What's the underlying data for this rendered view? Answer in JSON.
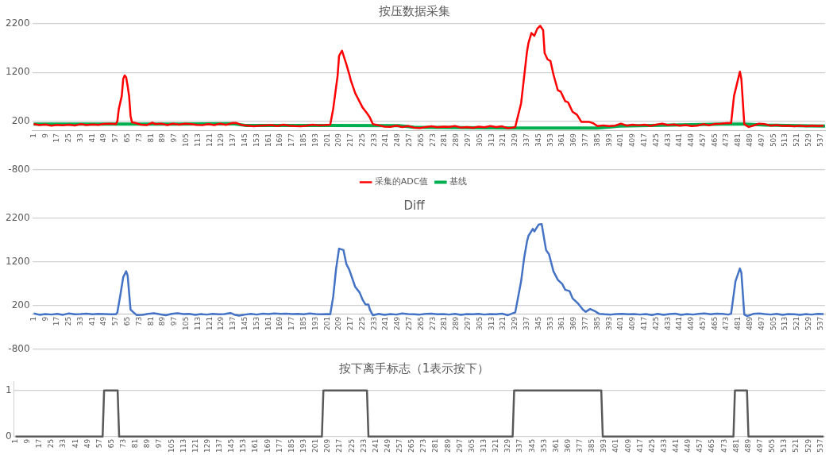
{
  "chart_data": [
    {
      "type": "line",
      "title": "按压数据采集",
      "legend": "bottom",
      "grid": "y",
      "marker": "none",
      "xlim": [
        0,
        540
      ],
      "xticks": [
        1,
        9,
        17,
        25,
        33,
        41,
        49,
        57,
        65,
        73,
        81,
        89,
        97,
        105,
        113,
        121,
        129,
        137,
        145,
        153,
        161,
        169,
        177,
        185,
        193,
        201,
        209,
        217,
        225,
        233,
        241,
        249,
        257,
        265,
        273,
        281,
        289,
        297,
        305,
        313,
        321,
        329,
        337,
        345,
        353,
        361,
        369,
        377,
        385,
        393,
        401,
        409,
        417,
        425,
        433,
        441,
        449,
        457,
        465,
        473,
        481,
        489,
        497,
        505,
        513,
        521,
        529,
        537
      ],
      "ylim": [
        -800,
        2200
      ],
      "yticks": [
        -800,
        200,
        1200,
        2200
      ],
      "series": [
        {
          "name": "采集的ADC值",
          "color": "#ff0000",
          "x": [
            1,
            5,
            9,
            13,
            17,
            21,
            25,
            29,
            33,
            37,
            41,
            45,
            49,
            53,
            57,
            58,
            59,
            61,
            62,
            63,
            64,
            65,
            66,
            67,
            68,
            70,
            74,
            78,
            82,
            84,
            88,
            92,
            96,
            100,
            104,
            108,
            112,
            116,
            120,
            124,
            128,
            132,
            136,
            139,
            143,
            147,
            151,
            155,
            159,
            163,
            167,
            171,
            175,
            179,
            183,
            187,
            191,
            195,
            199,
            203,
            205,
            208,
            209,
            211,
            214,
            216,
            217,
            220,
            223,
            225,
            228,
            230,
            232,
            236,
            240,
            244,
            248,
            252,
            256,
            260,
            264,
            268,
            272,
            276,
            280,
            284,
            288,
            292,
            296,
            300,
            304,
            308,
            312,
            316,
            320,
            324,
            327,
            329,
            333,
            337,
            338,
            340,
            342,
            344,
            346,
            348,
            349,
            351,
            353,
            355,
            358,
            360,
            363,
            365,
            368,
            371,
            374,
            379,
            382,
            385,
            389,
            393,
            397,
            401,
            405,
            409,
            413,
            417,
            421,
            425,
            429,
            433,
            437,
            441,
            445,
            449,
            453,
            457,
            461,
            465,
            469,
            473,
            476,
            478,
            482,
            483,
            485,
            488,
            491,
            495,
            499,
            503,
            507,
            511,
            515,
            519,
            523,
            527,
            531,
            535,
            539
          ],
          "values": [
            140,
            120,
            135,
            110,
            125,
            118,
            130,
            112,
            140,
            120,
            135,
            125,
            145,
            150,
            140,
            200,
            453,
            718,
            1070,
            1141,
            1100,
            924,
            718,
            306,
            176,
            165,
            130,
            120,
            170,
            140,
            150,
            120,
            150,
            130,
            150,
            140,
            125,
            120,
            140,
            120,
            150,
            125,
            160,
            165,
            120,
            110,
            95,
            110,
            115,
            120,
            100,
            130,
            110,
            100,
            95,
            110,
            130,
            115,
            120,
            130,
            453,
            1130,
            1541,
            1647,
            1365,
            1160,
            1040,
            776,
            600,
            482,
            365,
            276,
            140,
            115,
            90,
            85,
            110,
            80,
            100,
            70,
            60,
            80,
            95,
            75,
            90,
            85,
            100,
            70,
            80,
            65,
            90,
            75,
            100,
            80,
            95,
            55,
            70,
            82,
            570,
            1630,
            1806,
            2012,
            1953,
            2100,
            2159,
            2070,
            1600,
            1470,
            1435,
            1160,
            835,
            806,
            612,
            588,
            394,
            335,
            188,
            188,
            160,
            100,
            115,
            100,
            110,
            150,
            110,
            130,
            115,
            130,
            105,
            130,
            150,
            120,
            135,
            110,
            120,
            100,
            110,
            140,
            115,
            145,
            150,
            160,
            160,
            718,
            1218,
            1070,
            140,
            82,
            110,
            150,
            140,
            110,
            120,
            105,
            110,
            95,
            110,
            95,
            110,
            100,
            110
          ]
        },
        {
          "name": "基线",
          "color": "#00b050",
          "x": [
            1,
            60,
            72,
            100,
            137,
            145,
            200,
            250,
            260,
            329,
            385,
            400,
            470,
            485,
            500,
            540
          ],
          "values": [
            140,
            140,
            140,
            140,
            150,
            115,
            115,
            110,
            75,
            60,
            60,
            100,
            140,
            140,
            120,
            100
          ]
        }
      ]
    },
    {
      "type": "line",
      "title": "Diff",
      "legend": false,
      "grid": "y",
      "marker": "none",
      "xlim": [
        0,
        540
      ],
      "xticks": [
        1,
        9,
        17,
        25,
        33,
        41,
        49,
        57,
        65,
        73,
        81,
        89,
        97,
        105,
        113,
        121,
        129,
        137,
        145,
        153,
        161,
        169,
        177,
        185,
        193,
        201,
        209,
        217,
        225,
        233,
        241,
        249,
        257,
        265,
        273,
        281,
        289,
        297,
        305,
        313,
        321,
        329,
        337,
        345,
        353,
        361,
        369,
        377,
        385,
        393,
        401,
        409,
        417,
        425,
        433,
        441,
        449,
        457,
        465,
        473,
        481,
        489,
        497,
        505,
        513,
        521,
        529,
        537
      ],
      "ylim": [
        -800,
        2200
      ],
      "yticks": [
        -800,
        200,
        1200,
        2200
      ],
      "series": [
        {
          "color": "#4472c4",
          "x": [
            1,
            5,
            9,
            13,
            17,
            21,
            25,
            29,
            33,
            37,
            41,
            45,
            49,
            53,
            57,
            58,
            60,
            62,
            64,
            65,
            67,
            69,
            71,
            75,
            79,
            83,
            87,
            91,
            95,
            99,
            103,
            107,
            111,
            115,
            119,
            123,
            127,
            131,
            135,
            138,
            141,
            145,
            149,
            153,
            157,
            161,
            165,
            169,
            173,
            177,
            181,
            185,
            189,
            193,
            197,
            201,
            203,
            205,
            207,
            209,
            212,
            214,
            216,
            220,
            223,
            225,
            227,
            229,
            230,
            232,
            236,
            240,
            244,
            248,
            252,
            256,
            260,
            264,
            268,
            272,
            276,
            280,
            284,
            288,
            292,
            296,
            300,
            304,
            308,
            312,
            316,
            320,
            324,
            329,
            333,
            335,
            337,
            338,
            341,
            342,
            345,
            347,
            349,
            350,
            352,
            355,
            358,
            361,
            363,
            366,
            368,
            372,
            375,
            377,
            380,
            383,
            386,
            390,
            394,
            398,
            402,
            406,
            410,
            414,
            418,
            422,
            426,
            430,
            434,
            438,
            442,
            446,
            450,
            454,
            458,
            462,
            466,
            470,
            474,
            476,
            479,
            482,
            483,
            485,
            487,
            491,
            495,
            499,
            503,
            507,
            511,
            515,
            519,
            523,
            527,
            531,
            535,
            539
          ],
          "values": [
            20,
            -10,
            5,
            -5,
            10,
            -10,
            20,
            0,
            5,
            15,
            0,
            10,
            5,
            0,
            0,
            45,
            435,
            850,
            987,
            890,
            110,
            45,
            -15,
            -10,
            10,
            25,
            0,
            -20,
            10,
            25,
            5,
            10,
            -10,
            5,
            -5,
            10,
            0,
            5,
            30,
            -10,
            -30,
            -5,
            10,
            -5,
            15,
            5,
            20,
            10,
            15,
            5,
            10,
            0,
            20,
            5,
            0,
            5,
            0,
            400,
            1050,
            1506,
            1474,
            1150,
            1020,
            630,
            500,
            338,
            227,
            227,
            110,
            -20,
            10,
            -10,
            5,
            -5,
            20,
            5,
            0,
            -5,
            10,
            15,
            0,
            5,
            -5,
            10,
            -10,
            5,
            0,
            10,
            -5,
            5,
            0,
            15,
            -20,
            45,
            760,
            1280,
            1670,
            1800,
            1960,
            1900,
            2060,
            2070,
            1670,
            1474,
            1376,
            987,
            792,
            695,
            565,
            532,
            370,
            240,
            110,
            58,
            123,
            78,
            13,
            0,
            -5,
            5,
            10,
            0,
            5,
            -5,
            5,
            -15,
            10,
            -10,
            5,
            15,
            -10,
            5,
            -5,
            10,
            20,
            0,
            15,
            10,
            -5,
            13,
            760,
            1052,
            955,
            -6,
            -40,
            10,
            20,
            5,
            -5,
            10,
            -10,
            5,
            0,
            -10,
            5,
            -5,
            10,
            5
          ]
        }
      ]
    },
    {
      "type": "line",
      "title": "按下离手标志（1表示按下）",
      "legend": false,
      "grid": "y",
      "marker": "none",
      "xlim": [
        0,
        540
      ],
      "xticks": [
        1,
        9,
        17,
        25,
        33,
        41,
        49,
        57,
        65,
        73,
        81,
        89,
        97,
        105,
        113,
        121,
        129,
        137,
        145,
        153,
        161,
        169,
        177,
        185,
        193,
        201,
        209,
        217,
        225,
        233,
        241,
        249,
        257,
        265,
        273,
        281,
        289,
        297,
        305,
        313,
        321,
        329,
        337,
        345,
        353,
        361,
        369,
        377,
        385,
        393,
        401,
        409,
        417,
        425,
        433,
        441,
        449,
        457,
        465,
        473,
        481,
        489,
        497,
        505,
        513,
        521,
        529,
        537
      ],
      "ylim": [
        0,
        1.2
      ],
      "yticks": [
        0,
        1
      ],
      "series": [
        {
          "color": "#595959",
          "x": [
            1,
            59,
            60,
            69,
            70,
            205,
            206,
            235,
            236,
            332,
            333,
            391,
            392,
            479,
            480,
            488,
            489,
            539
          ],
          "values": [
            0,
            0,
            1,
            1,
            0,
            0,
            1,
            1,
            0,
            0,
            1,
            1,
            0,
            0,
            1,
            1,
            0,
            0
          ]
        }
      ]
    }
  ]
}
